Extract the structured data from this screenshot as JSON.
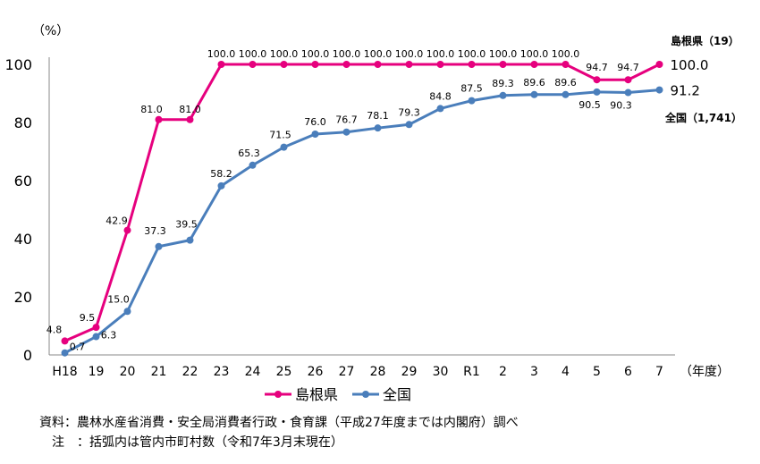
{
  "chart_data": {
    "type": "line",
    "title": "",
    "ylabel": "（%）",
    "xlabel": "（年度）",
    "ylim": [
      0,
      100
    ],
    "yticks": [
      0,
      20,
      40,
      60,
      80,
      100
    ],
    "categories": [
      "H18",
      "19",
      "20",
      "21",
      "22",
      "23",
      "24",
      "25",
      "26",
      "27",
      "28",
      "29",
      "30",
      "R1",
      "2",
      "3",
      "4",
      "5",
      "6",
      "7"
    ],
    "grid": false,
    "legend": "bottom",
    "series": [
      {
        "name": "島根県",
        "color": "#E6007E",
        "end_label": "島根県（19）",
        "values": [
          4.8,
          9.5,
          42.9,
          81.0,
          81.0,
          100.0,
          100.0,
          100.0,
          100.0,
          100.0,
          100.0,
          100.0,
          100.0,
          100.0,
          100.0,
          100.0,
          100.0,
          94.7,
          94.7,
          100.0
        ],
        "labels": [
          "4.8",
          "9.5",
          "42.9",
          "81.0",
          "81.0",
          "100.0",
          "100.0",
          "100.0",
          "100.0",
          "100.0",
          "100.0",
          "100.0",
          "100.0",
          "100.0",
          "100.0",
          "100.0",
          "100.0",
          "94.7",
          "94.7",
          "100.0"
        ]
      },
      {
        "name": "全国",
        "color": "#4A7EBB",
        "end_label": "全国（1,741）",
        "values": [
          0.7,
          6.3,
          15.0,
          37.3,
          39.5,
          58.2,
          65.3,
          71.5,
          76.0,
          76.7,
          78.1,
          79.3,
          84.8,
          87.5,
          89.3,
          89.6,
          89.6,
          90.5,
          90.3,
          91.2
        ],
        "labels": [
          "0.7",
          "6.3",
          "15.0",
          "37.3",
          "39.5",
          "58.2",
          "65.3",
          "71.5",
          "76.0",
          "76.7",
          "78.1",
          "79.3",
          "84.8",
          "87.5",
          "89.3",
          "89.6",
          "89.6",
          "90.5",
          "90.3",
          "91.2"
        ]
      }
    ]
  },
  "notes": {
    "source": "資料：農林水産省消費・安全局消費者行政・食育課（平成27年度までは内閣府）調べ",
    "note": "　注　：括弧内は管内市町村数（令和7年3月末現在）"
  }
}
